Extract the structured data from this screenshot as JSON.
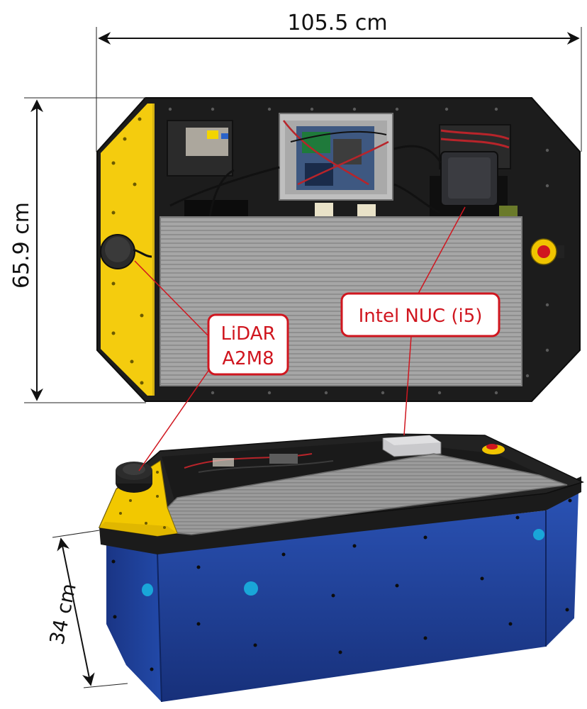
{
  "dimensions": {
    "length": "105.5 cm",
    "width": "65.9 cm",
    "height": "34 cm"
  },
  "callouts": {
    "lidar": {
      "line1": "LiDAR",
      "line2": "A2M8"
    },
    "nuc": {
      "text": "Intel NUC (i5)"
    }
  },
  "colors": {
    "callout": "#d0161f",
    "dimension": "#111111",
    "yellow_panel": "#f2c800",
    "blue_body": "#1e3f9a",
    "black_frame": "#1b1b1b",
    "mat": "#a9a9a9"
  },
  "icons": {
    "top_lidar": "lidar-sensor-icon",
    "emergency_stop": "emergency-stop-icon"
  }
}
